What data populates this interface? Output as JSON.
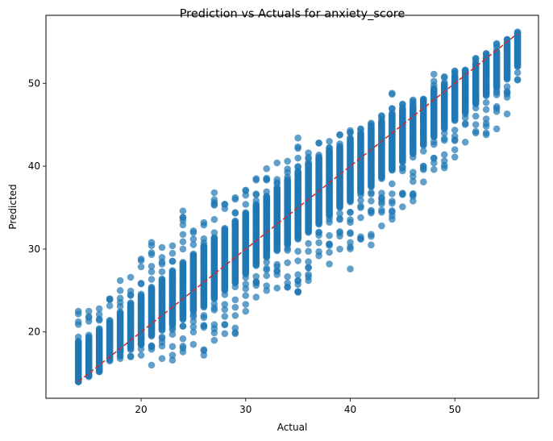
{
  "chart_data": {
    "type": "scatter",
    "title": "Prediction vs Actuals for anxiety_score",
    "xlabel": "Actual",
    "ylabel": "Predicted",
    "xlim": [
      10.9,
      58.0
    ],
    "ylim": [
      12.0,
      58.2
    ],
    "xticks": [
      20,
      30,
      40,
      50
    ],
    "yticks": [
      20,
      30,
      40,
      50
    ],
    "grid": false,
    "point_color": "#1f77b4",
    "line_color": "#d62728",
    "reference_line": {
      "label": "",
      "x": [
        14,
        56
      ],
      "y": [
        14,
        56
      ],
      "style": "dashed"
    },
    "series": [
      {
        "x_values": [
          14,
          15,
          16,
          17,
          18,
          19,
          20,
          21,
          22,
          23,
          24,
          25,
          26,
          27,
          28,
          29,
          30,
          31,
          32,
          33,
          34,
          35,
          36,
          37,
          38,
          39,
          40,
          41,
          42,
          43,
          44,
          45,
          46,
          47,
          48,
          49,
          50,
          51,
          52,
          53,
          54,
          55,
          56
        ],
        "y_min": [
          14.0,
          14.6,
          15.2,
          16.5,
          16.8,
          17.0,
          17.2,
          16.0,
          16.8,
          16.6,
          17.6,
          18.5,
          17.2,
          19.0,
          19.8,
          19.8,
          22.5,
          24.2,
          25.0,
          25.3,
          25.4,
          24.8,
          26.2,
          29.2,
          28.2,
          30.0,
          27.6,
          31.2,
          30.5,
          32.8,
          33.6,
          35.1,
          35.8,
          38.1,
          39.6,
          39.8,
          41.1,
          42.9,
          44.0,
          43.8,
          44.5,
          46.3,
          50.4
        ],
        "y_max": [
          22.5,
          22.5,
          22.8,
          24.0,
          26.2,
          26.6,
          28.8,
          30.8,
          30.2,
          30.4,
          34.6,
          32.2,
          33.2,
          36.8,
          35.4,
          36.2,
          37.1,
          38.5,
          39.7,
          40.4,
          40.6,
          43.4,
          41.6,
          42.8,
          43.0,
          43.8,
          44.3,
          44.5,
          45.2,
          46.1,
          48.8,
          47.5,
          48.0,
          48.1,
          51.1,
          50.8,
          51.5,
          51.6,
          53.0,
          53.6,
          54.8,
          55.3,
          56.2
        ],
        "core_min": [
          14.0,
          14.8,
          15.4,
          16.8,
          17.5,
          18.0,
          18.5,
          19.5,
          20.2,
          20.8,
          21.5,
          22.5,
          23.0,
          24.0,
          25.0,
          26.0,
          27.0,
          28.0,
          29.0,
          29.8,
          30.5,
          31.2,
          32.0,
          33.0,
          34.0,
          35.0,
          35.8,
          36.8,
          37.5,
          38.5,
          39.5,
          40.5,
          41.5,
          42.5,
          43.5,
          44.5,
          45.5,
          46.5,
          47.5,
          48.5,
          49.5,
          50.5,
          52.0
        ],
        "core_max": [
          19.0,
          19.5,
          20.5,
          21.5,
          22.5,
          23.5,
          24.5,
          25.5,
          26.5,
          27.5,
          28.5,
          29.5,
          30.5,
          31.5,
          32.5,
          33.5,
          34.5,
          35.5,
          36.5,
          37.5,
          38.5,
          39.5,
          40.5,
          41.2,
          42.0,
          42.5,
          43.5,
          44.0,
          44.8,
          45.5,
          46.5,
          47.0,
          47.5,
          48.0,
          49.5,
          50.0,
          51.0,
          51.5,
          52.5,
          53.2,
          54.0,
          55.0,
          56.0
        ]
      }
    ]
  }
}
